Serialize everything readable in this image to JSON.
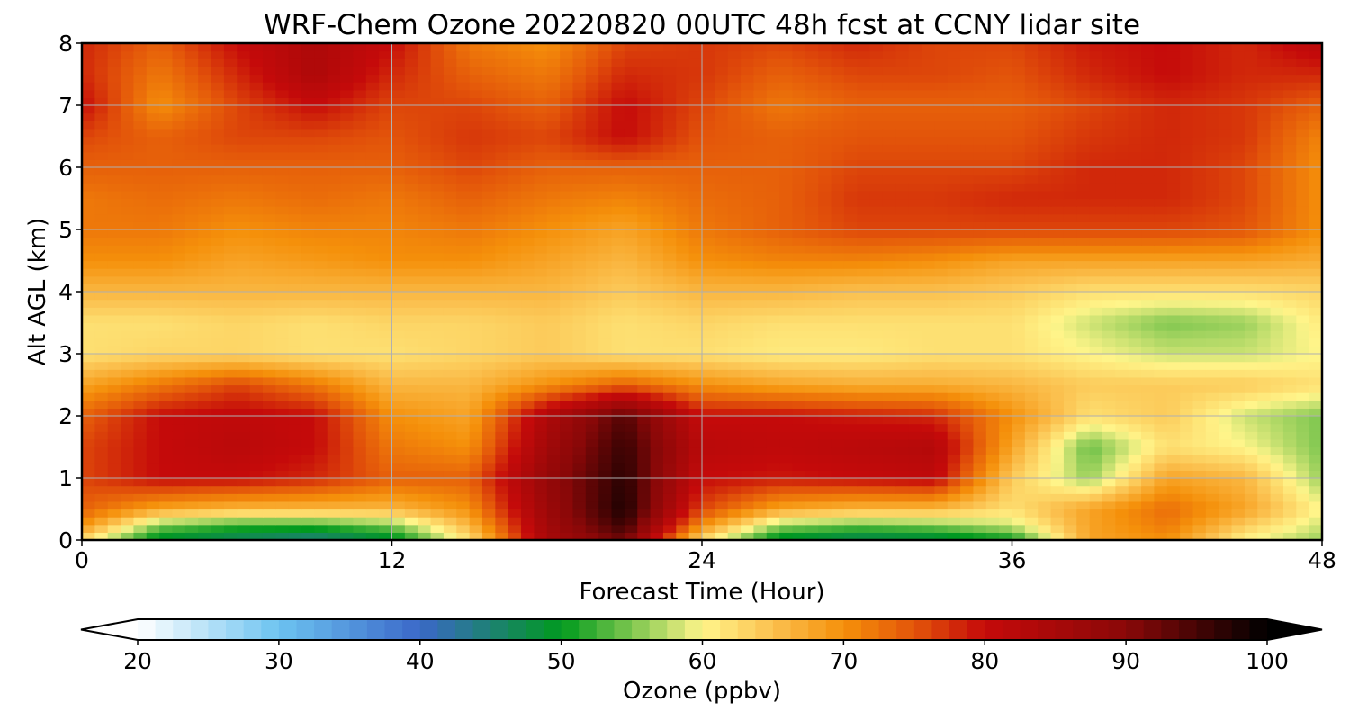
{
  "chart_data": {
    "type": "heatmap",
    "title": "WRF-Chem Ozone  20220820 00UTC 48h fcst at CCNY lidar site",
    "xlabel": "Forecast Time (Hour)",
    "ylabel": "Alt AGL (km)",
    "xlim": [
      0,
      48
    ],
    "ylim": [
      0,
      8
    ],
    "xticks": [
      0,
      12,
      24,
      36,
      48
    ],
    "yticks": [
      0,
      1,
      2,
      3,
      4,
      5,
      6,
      7,
      8
    ],
    "grid": true,
    "colorbar": {
      "label": "Ozone  (ppbv)",
      "min": 20,
      "max": 100,
      "ticks": [
        20,
        30,
        40,
        50,
        60,
        70,
        80,
        90,
        100
      ],
      "extend": "both",
      "color_stops": [
        {
          "value": 20,
          "color": "#ffffff"
        },
        {
          "value": 30,
          "color": "#6cc3f0"
        },
        {
          "value": 40,
          "color": "#3b68c9"
        },
        {
          "value": 50,
          "color": "#009a1e"
        },
        {
          "value": 55,
          "color": "#7ec64f"
        },
        {
          "value": 60,
          "color": "#fff58a"
        },
        {
          "value": 65,
          "color": "#fbc04e"
        },
        {
          "value": 70,
          "color": "#f5900a"
        },
        {
          "value": 75,
          "color": "#e3550a"
        },
        {
          "value": 80,
          "color": "#c50a0a"
        },
        {
          "value": 90,
          "color": "#8a0808"
        },
        {
          "value": 100,
          "color": "#000000"
        }
      ],
      "under_color": "#ffffff",
      "over_color": "#000000"
    },
    "x": [
      0,
      3,
      6,
      9,
      12,
      15,
      18,
      21,
      24,
      27,
      30,
      33,
      36,
      39,
      42,
      45,
      48
    ],
    "y": [
      0,
      0.25,
      0.5,
      1,
      1.5,
      2,
      2.5,
      3,
      3.5,
      4,
      4.5,
      5,
      5.5,
      6,
      6.5,
      7,
      7.5,
      8
    ],
    "z": [
      [
        62,
        48,
        46,
        44,
        48,
        62,
        85,
        92,
        62,
        48,
        46,
        47,
        50,
        68,
        70,
        60,
        56
      ],
      [
        70,
        55,
        52,
        52,
        55,
        66,
        86,
        96,
        70,
        56,
        54,
        55,
        58,
        68,
        72,
        64,
        58
      ],
      [
        74,
        68,
        66,
        66,
        66,
        70,
        87,
        98,
        76,
        68,
        66,
        66,
        62,
        68,
        73,
        68,
        60
      ],
      [
        76,
        80,
        80,
        78,
        74,
        74,
        88,
        97,
        80,
        79,
        80,
        81,
        64,
        56,
        68,
        66,
        56
      ],
      [
        76,
        80,
        82,
        80,
        72,
        70,
        86,
        96,
        82,
        81,
        82,
        83,
        68,
        54,
        62,
        60,
        55
      ],
      [
        74,
        80,
        81,
        80,
        70,
        68,
        84,
        94,
        80,
        80,
        79,
        78,
        70,
        62,
        64,
        58,
        55
      ],
      [
        68,
        72,
        76,
        72,
        66,
        66,
        70,
        74,
        70,
        68,
        67,
        67,
        66,
        64,
        64,
        64,
        62
      ],
      [
        62,
        63,
        63,
        62,
        62,
        63,
        64,
        62,
        62,
        61,
        61,
        62,
        62,
        60,
        58,
        58,
        60
      ],
      [
        62,
        62,
        63,
        62,
        63,
        63,
        64,
        62,
        63,
        62,
        62,
        62,
        62,
        58,
        55,
        56,
        61
      ],
      [
        66,
        66,
        66,
        66,
        66,
        66,
        66,
        64,
        66,
        66,
        65,
        65,
        64,
        62,
        62,
        62,
        63
      ],
      [
        70,
        70,
        68,
        69,
        70,
        70,
        68,
        66,
        70,
        71,
        71,
        70,
        68,
        68,
        68,
        68,
        67
      ],
      [
        72,
        72,
        70,
        71,
        71,
        72,
        70,
        68,
        72,
        74,
        76,
        76,
        76,
        76,
        76,
        75,
        70
      ],
      [
        72,
        73,
        72,
        73,
        72,
        74,
        72,
        71,
        73,
        74,
        77,
        77,
        78,
        78,
        78,
        76,
        70
      ],
      [
        74,
        74,
        74,
        74,
        74,
        76,
        74,
        74,
        74,
        74,
        76,
        76,
        76,
        78,
        78,
        76,
        70
      ],
      [
        76,
        74,
        76,
        76,
        75,
        77,
        76,
        80,
        75,
        74,
        75,
        75,
        75,
        77,
        78,
        77,
        71
      ],
      [
        80,
        70,
        76,
        80,
        76,
        76,
        74,
        80,
        76,
        72,
        74,
        74,
        74,
        76,
        78,
        77,
        74
      ],
      [
        78,
        72,
        78,
        84,
        78,
        74,
        72,
        78,
        77,
        74,
        76,
        76,
        75,
        78,
        80,
        78,
        78
      ],
      [
        78,
        74,
        80,
        84,
        80,
        72,
        70,
        76,
        77,
        76,
        78,
        76,
        76,
        79,
        80,
        78,
        82
      ]
    ]
  }
}
